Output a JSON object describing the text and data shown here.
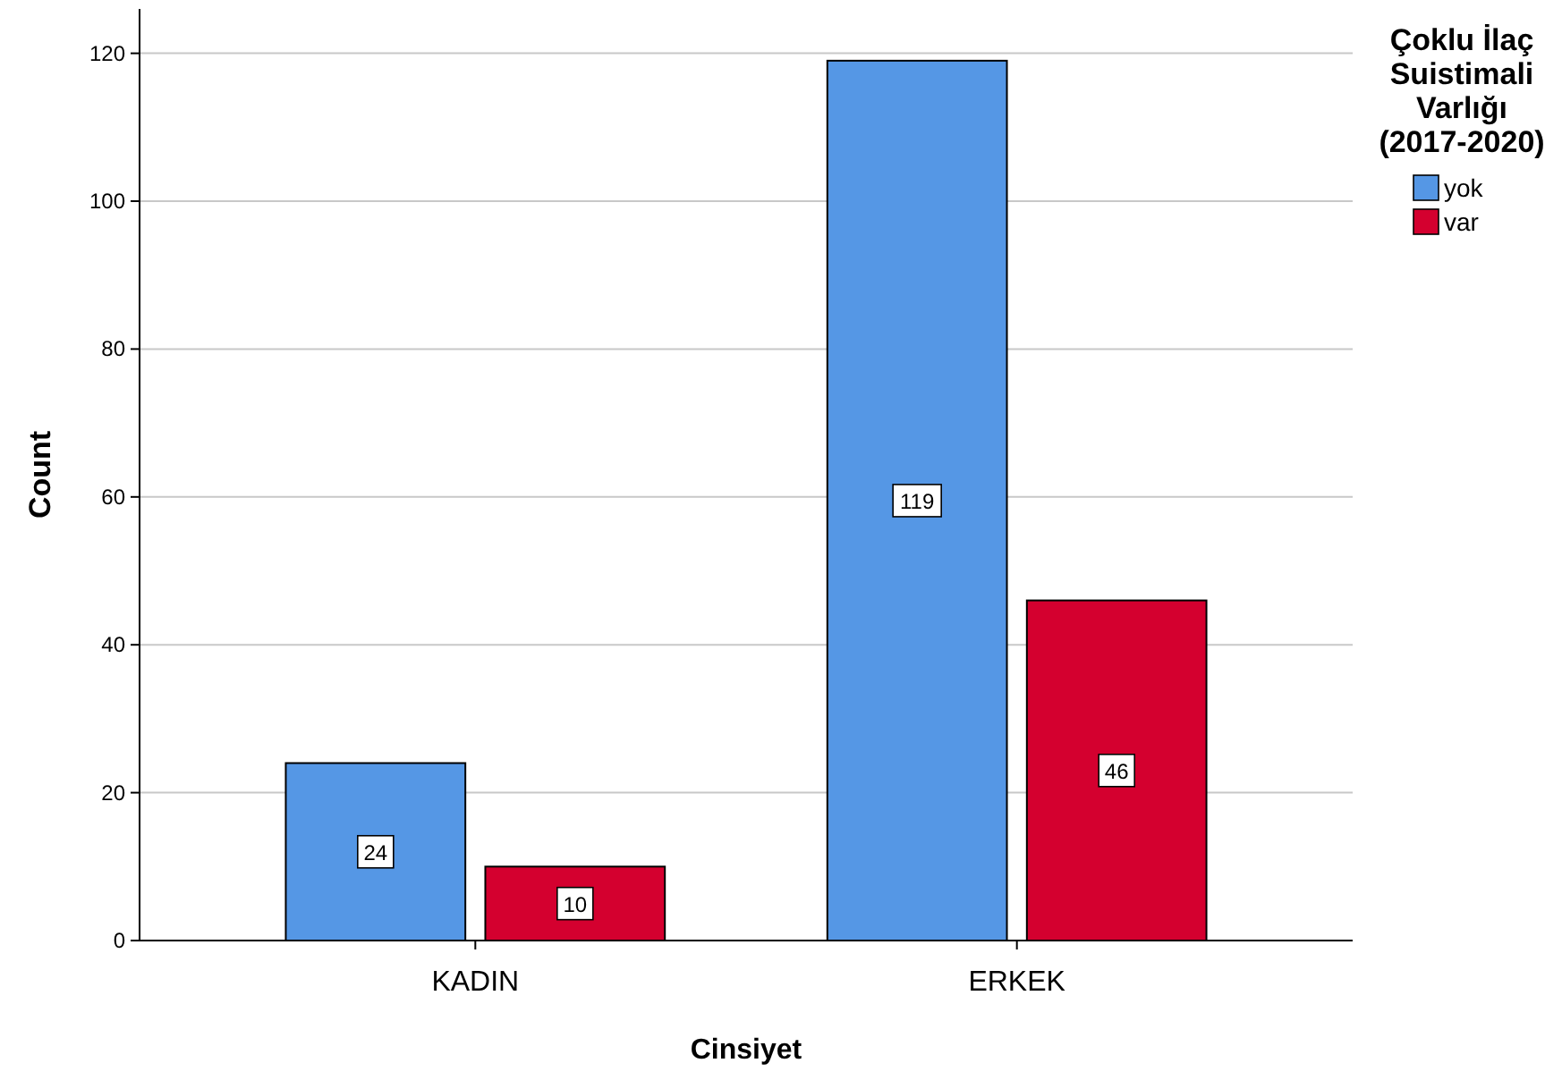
{
  "chart_data": {
    "type": "bar",
    "xlabel": "Cinsiyet",
    "ylabel": "Count",
    "legend_title": "Çoklu İlaç Suistimali Varlığı (2017-2020)",
    "categories": [
      "KADIN",
      "ERKEK"
    ],
    "series": [
      {
        "name": "yok",
        "color": "#5597e5",
        "values": [
          24,
          119
        ]
      },
      {
        "name": "var",
        "color": "#d4002f",
        "values": [
          10,
          46
        ]
      }
    ],
    "ylim": [
      0,
      126
    ],
    "yticks": [
      0,
      20,
      40,
      60,
      80,
      100,
      120
    ],
    "grid": "y",
    "legend": "top right",
    "data_labels": true
  }
}
